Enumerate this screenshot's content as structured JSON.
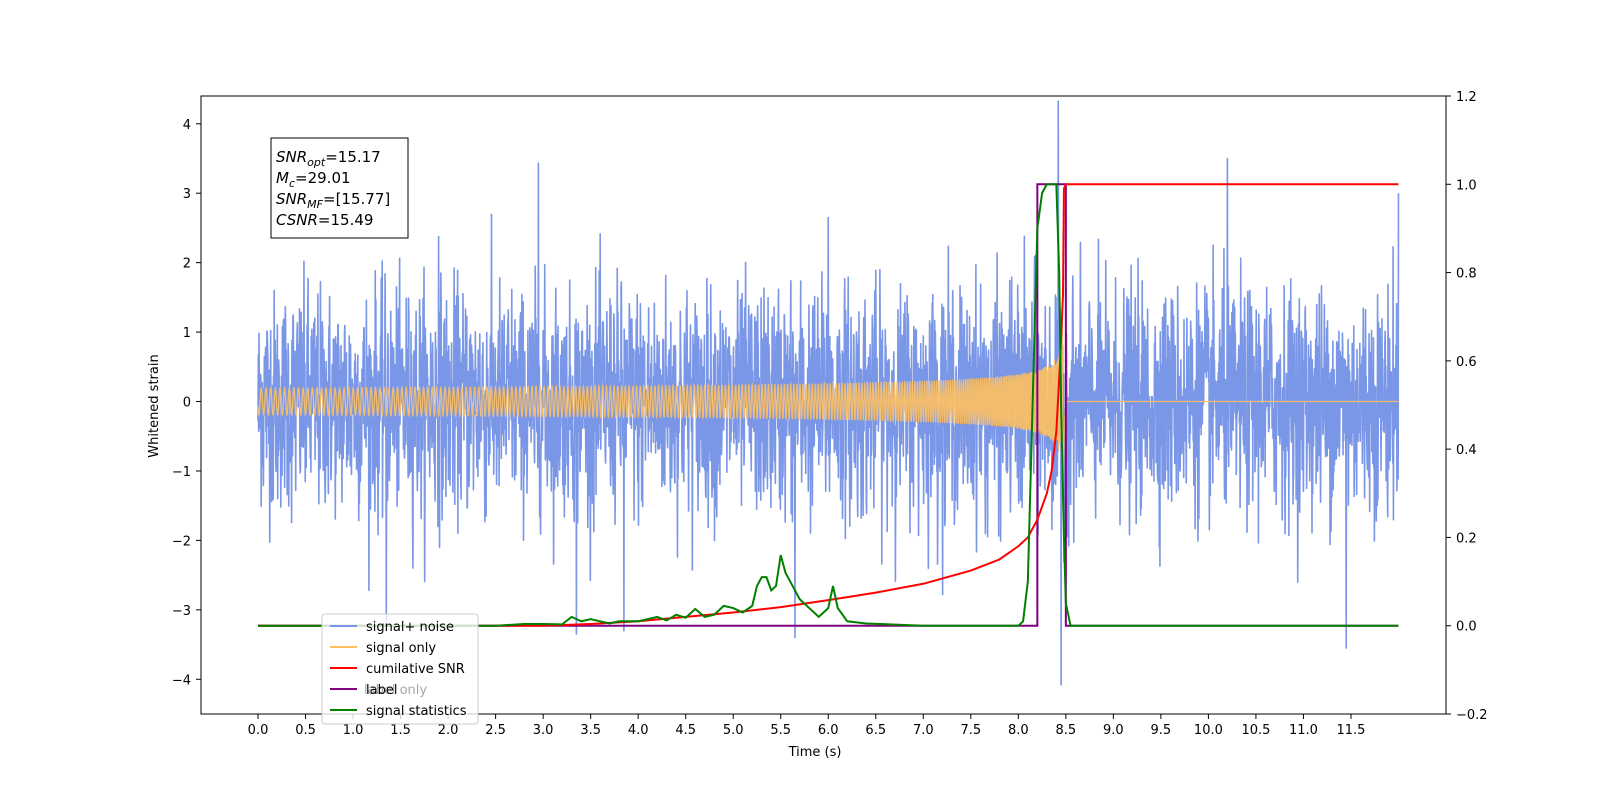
{
  "chart_data": {
    "type": "line",
    "xlabel": "Time (s)",
    "ylabel": "Whitened strain",
    "xlim": [
      -0.6,
      12.5
    ],
    "ylim": [
      -4.5,
      4.4
    ],
    "ylim_right": [
      -0.2,
      1.2
    ],
    "xticks": [
      "0.0",
      "0.5",
      "1.0",
      "1.5",
      "2.0",
      "2.5",
      "3.0",
      "3.5",
      "4.0",
      "4.5",
      "5.0",
      "5.5",
      "6.0",
      "6.5",
      "7.0",
      "7.5",
      "8.0",
      "8.5",
      "9.0",
      "9.5",
      "10.0",
      "10.5",
      "11.0",
      "11.5"
    ],
    "yticks_left": [
      "4",
      "3",
      "2",
      "1",
      "0",
      "−1",
      "−2",
      "−3",
      "−4"
    ],
    "yticks_right": [
      "1.2",
      "1.0",
      "0.8",
      "0.6",
      "0.4",
      "0.2",
      "0.0",
      "−0.2"
    ],
    "annotation": {
      "lines": [
        {
          "var": "SNR",
          "sub": "opt",
          "value": "=15.17"
        },
        {
          "var": "M",
          "sub": "c",
          "value": "=29.01"
        },
        {
          "var": "SNR",
          "sub": "MF",
          "value": "=[15.77]"
        },
        {
          "var": "CSNR",
          "sub": "",
          "value": "=15.49"
        }
      ]
    },
    "legend": {
      "position": "lower-left",
      "entries": [
        "signal+ noise",
        "signal only",
        "cumilative SNR",
        "label",
        "signal statistics"
      ],
      "hidden_text": "label only"
    },
    "series": [
      {
        "name": "signal+ noise",
        "axis": "left",
        "color": "#7a96e6",
        "description_x_range": [
          0.0,
          12.0
        ],
        "std": 0.75,
        "extremes": [
          [
            1.35,
            -3.1
          ],
          [
            2.95,
            3.55
          ],
          [
            3.35,
            -3.4
          ],
          [
            3.85,
            -3.2
          ],
          [
            5.65,
            -3.3
          ],
          [
            8.42,
            3.95
          ],
          [
            8.45,
            -4.1
          ],
          [
            10.2,
            3.5
          ],
          [
            11.45,
            -3.55
          ],
          [
            12.0,
            3.0
          ],
          [
            1.9,
            2.5
          ],
          [
            6.0,
            2.7
          ]
        ]
      },
      {
        "name": "signal only",
        "axis": "left",
        "color": "#ffc060",
        "chirp": {
          "t_merge": 8.47,
          "t_start": 0.0,
          "peak_amp": 1.55
        }
      },
      {
        "name": "cumilative SNR",
        "axis": "right",
        "color": "#ff0000",
        "x": [
          0.0,
          1.0,
          2.0,
          3.0,
          3.5,
          4.0,
          4.5,
          5.0,
          5.5,
          6.0,
          6.5,
          7.0,
          7.5,
          7.8,
          8.0,
          8.1,
          8.2,
          8.3,
          8.35,
          8.4,
          8.44,
          8.47,
          8.48,
          8.5,
          12.0
        ],
        "y": [
          0.0,
          0.0,
          0.0,
          0.0,
          0.004,
          0.01,
          0.02,
          0.03,
          0.042,
          0.058,
          0.075,
          0.095,
          0.125,
          0.15,
          0.18,
          0.2,
          0.24,
          0.3,
          0.35,
          0.44,
          0.6,
          0.75,
          0.99,
          1.0,
          1.0
        ]
      },
      {
        "name": "label",
        "axis": "right",
        "color": "#800080",
        "x": [
          0.0,
          8.2,
          8.2,
          8.5,
          8.5,
          12.0
        ],
        "y": [
          0.0,
          0.0,
          1.0,
          1.0,
          0.0,
          0.0
        ]
      },
      {
        "name": "signal statistics",
        "axis": "right",
        "color": "#008000",
        "x": [
          0.0,
          1.0,
          2.0,
          2.5,
          2.8,
          3.0,
          3.2,
          3.3,
          3.4,
          3.5,
          3.6,
          3.7,
          3.8,
          4.0,
          4.1,
          4.2,
          4.3,
          4.4,
          4.5,
          4.6,
          4.7,
          4.8,
          4.9,
          5.0,
          5.1,
          5.2,
          5.25,
          5.3,
          5.35,
          5.4,
          5.45,
          5.5,
          5.55,
          5.6,
          5.7,
          5.8,
          5.9,
          6.0,
          6.05,
          6.1,
          6.2,
          6.4,
          7.0,
          7.5,
          8.0,
          8.05,
          8.1,
          8.15,
          8.2,
          8.25,
          8.3,
          8.35,
          8.4,
          8.43,
          8.45,
          8.48,
          8.5,
          8.55,
          8.6,
          12.0
        ],
        "y": [
          0.0,
          0.0,
          0.0,
          0.0,
          0.004,
          0.004,
          0.003,
          0.02,
          0.01,
          0.015,
          0.01,
          0.005,
          0.01,
          0.01,
          0.015,
          0.02,
          0.012,
          0.025,
          0.018,
          0.038,
          0.02,
          0.025,
          0.045,
          0.04,
          0.03,
          0.045,
          0.09,
          0.11,
          0.11,
          0.08,
          0.09,
          0.16,
          0.12,
          0.1,
          0.06,
          0.04,
          0.02,
          0.04,
          0.09,
          0.04,
          0.01,
          0.005,
          0.0,
          0.0,
          0.0,
          0.01,
          0.1,
          0.5,
          0.9,
          0.98,
          1.0,
          1.0,
          1.0,
          0.8,
          0.5,
          0.2,
          0.05,
          0.0,
          0.0,
          0.0
        ]
      }
    ]
  }
}
